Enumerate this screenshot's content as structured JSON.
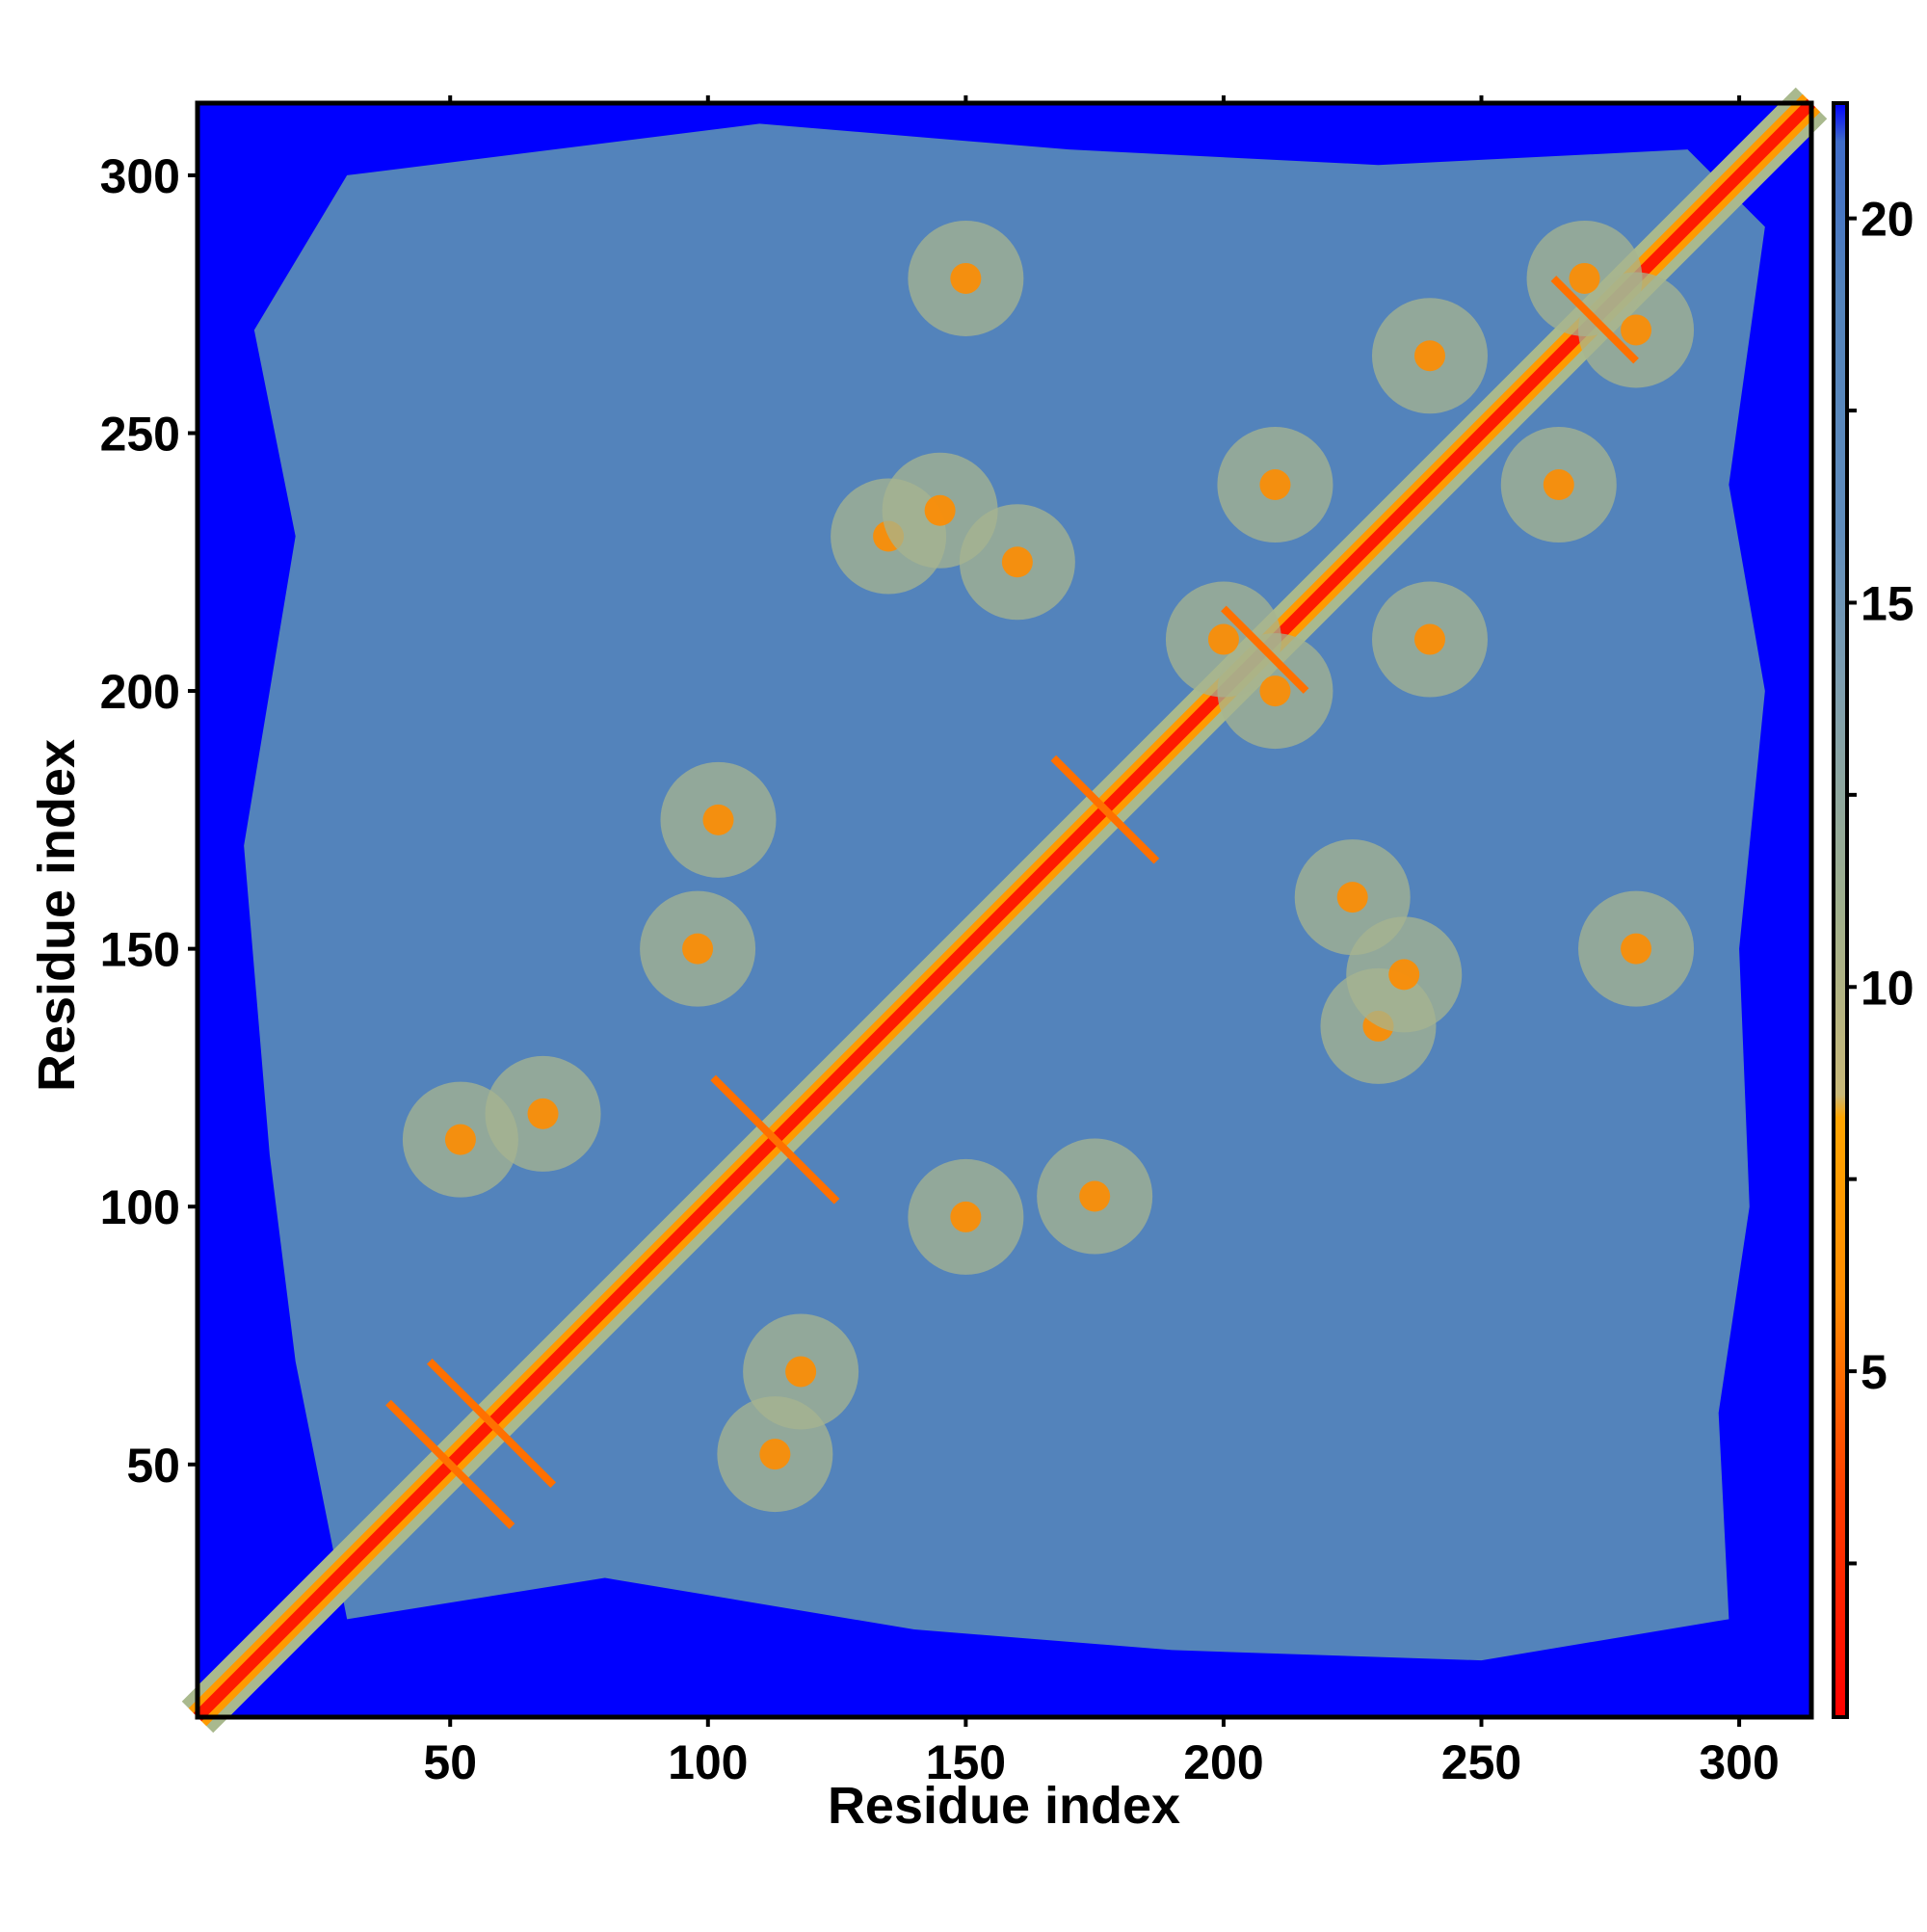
{
  "chart_data": {
    "type": "heatmap",
    "title": "",
    "xlabel": "Residue index",
    "ylabel": "Residue index",
    "xlim": [
      1,
      314
    ],
    "ylim": [
      1,
      314
    ],
    "xticks": [
      50,
      100,
      150,
      200,
      250,
      300
    ],
    "yticks": [
      50,
      100,
      150,
      200,
      250,
      300
    ],
    "colorbar": {
      "ticks": [
        5,
        10,
        15,
        20
      ],
      "range": [
        0.5,
        21.5
      ],
      "stops": [
        {
          "value": 0.5,
          "color": "#ff0000"
        },
        {
          "value": 3.5,
          "color": "#ff4000"
        },
        {
          "value": 6.0,
          "color": "#ff8c00"
        },
        {
          "value": 8.3,
          "color": "#ffa500"
        },
        {
          "value": 8.6,
          "color": "#c8b878"
        },
        {
          "value": 11.0,
          "color": "#a0b08c"
        },
        {
          "value": 14.0,
          "color": "#7d9eb0"
        },
        {
          "value": 16.0,
          "color": "#5f8cbc"
        },
        {
          "value": 19.0,
          "color": "#5383bb"
        },
        {
          "value": 21.0,
          "color": "#3f6cc8"
        },
        {
          "value": 21.5,
          "color": "#0000ff"
        }
      ]
    },
    "background_color": "#0000ff",
    "midrange_color": "#5383bb",
    "contact_features": {
      "diagonal": {
        "from": 1,
        "to": 314
      },
      "cross_contacts": [
        {
          "center": [
            50,
            50
          ],
          "span": 12
        },
        {
          "center": [
            58,
            58
          ],
          "span": 12
        },
        {
          "center": [
            113,
            113
          ],
          "span": 12
        },
        {
          "center": [
            177,
            177
          ],
          "span": 10
        },
        {
          "center": [
            208,
            208
          ],
          "span": 8
        },
        {
          "center": [
            272,
            272
          ],
          "span": 8
        }
      ],
      "off_diagonal_regions": [
        [
          68,
          118
        ],
        [
          118,
          68
        ],
        [
          52,
          113
        ],
        [
          113,
          52
        ],
        [
          135,
          230
        ],
        [
          230,
          135
        ],
        [
          160,
          225
        ],
        [
          225,
          160
        ],
        [
          235,
          145
        ],
        [
          145,
          235
        ],
        [
          210,
          200
        ],
        [
          200,
          210
        ],
        [
          240,
          210
        ],
        [
          210,
          240
        ],
        [
          265,
          240
        ],
        [
          240,
          265
        ],
        [
          280,
          150
        ],
        [
          150,
          280
        ],
        [
          102,
          175
        ],
        [
          175,
          102
        ],
        [
          150,
          98
        ],
        [
          98,
          150
        ],
        [
          280,
          270
        ],
        [
          270,
          280
        ]
      ]
    }
  }
}
